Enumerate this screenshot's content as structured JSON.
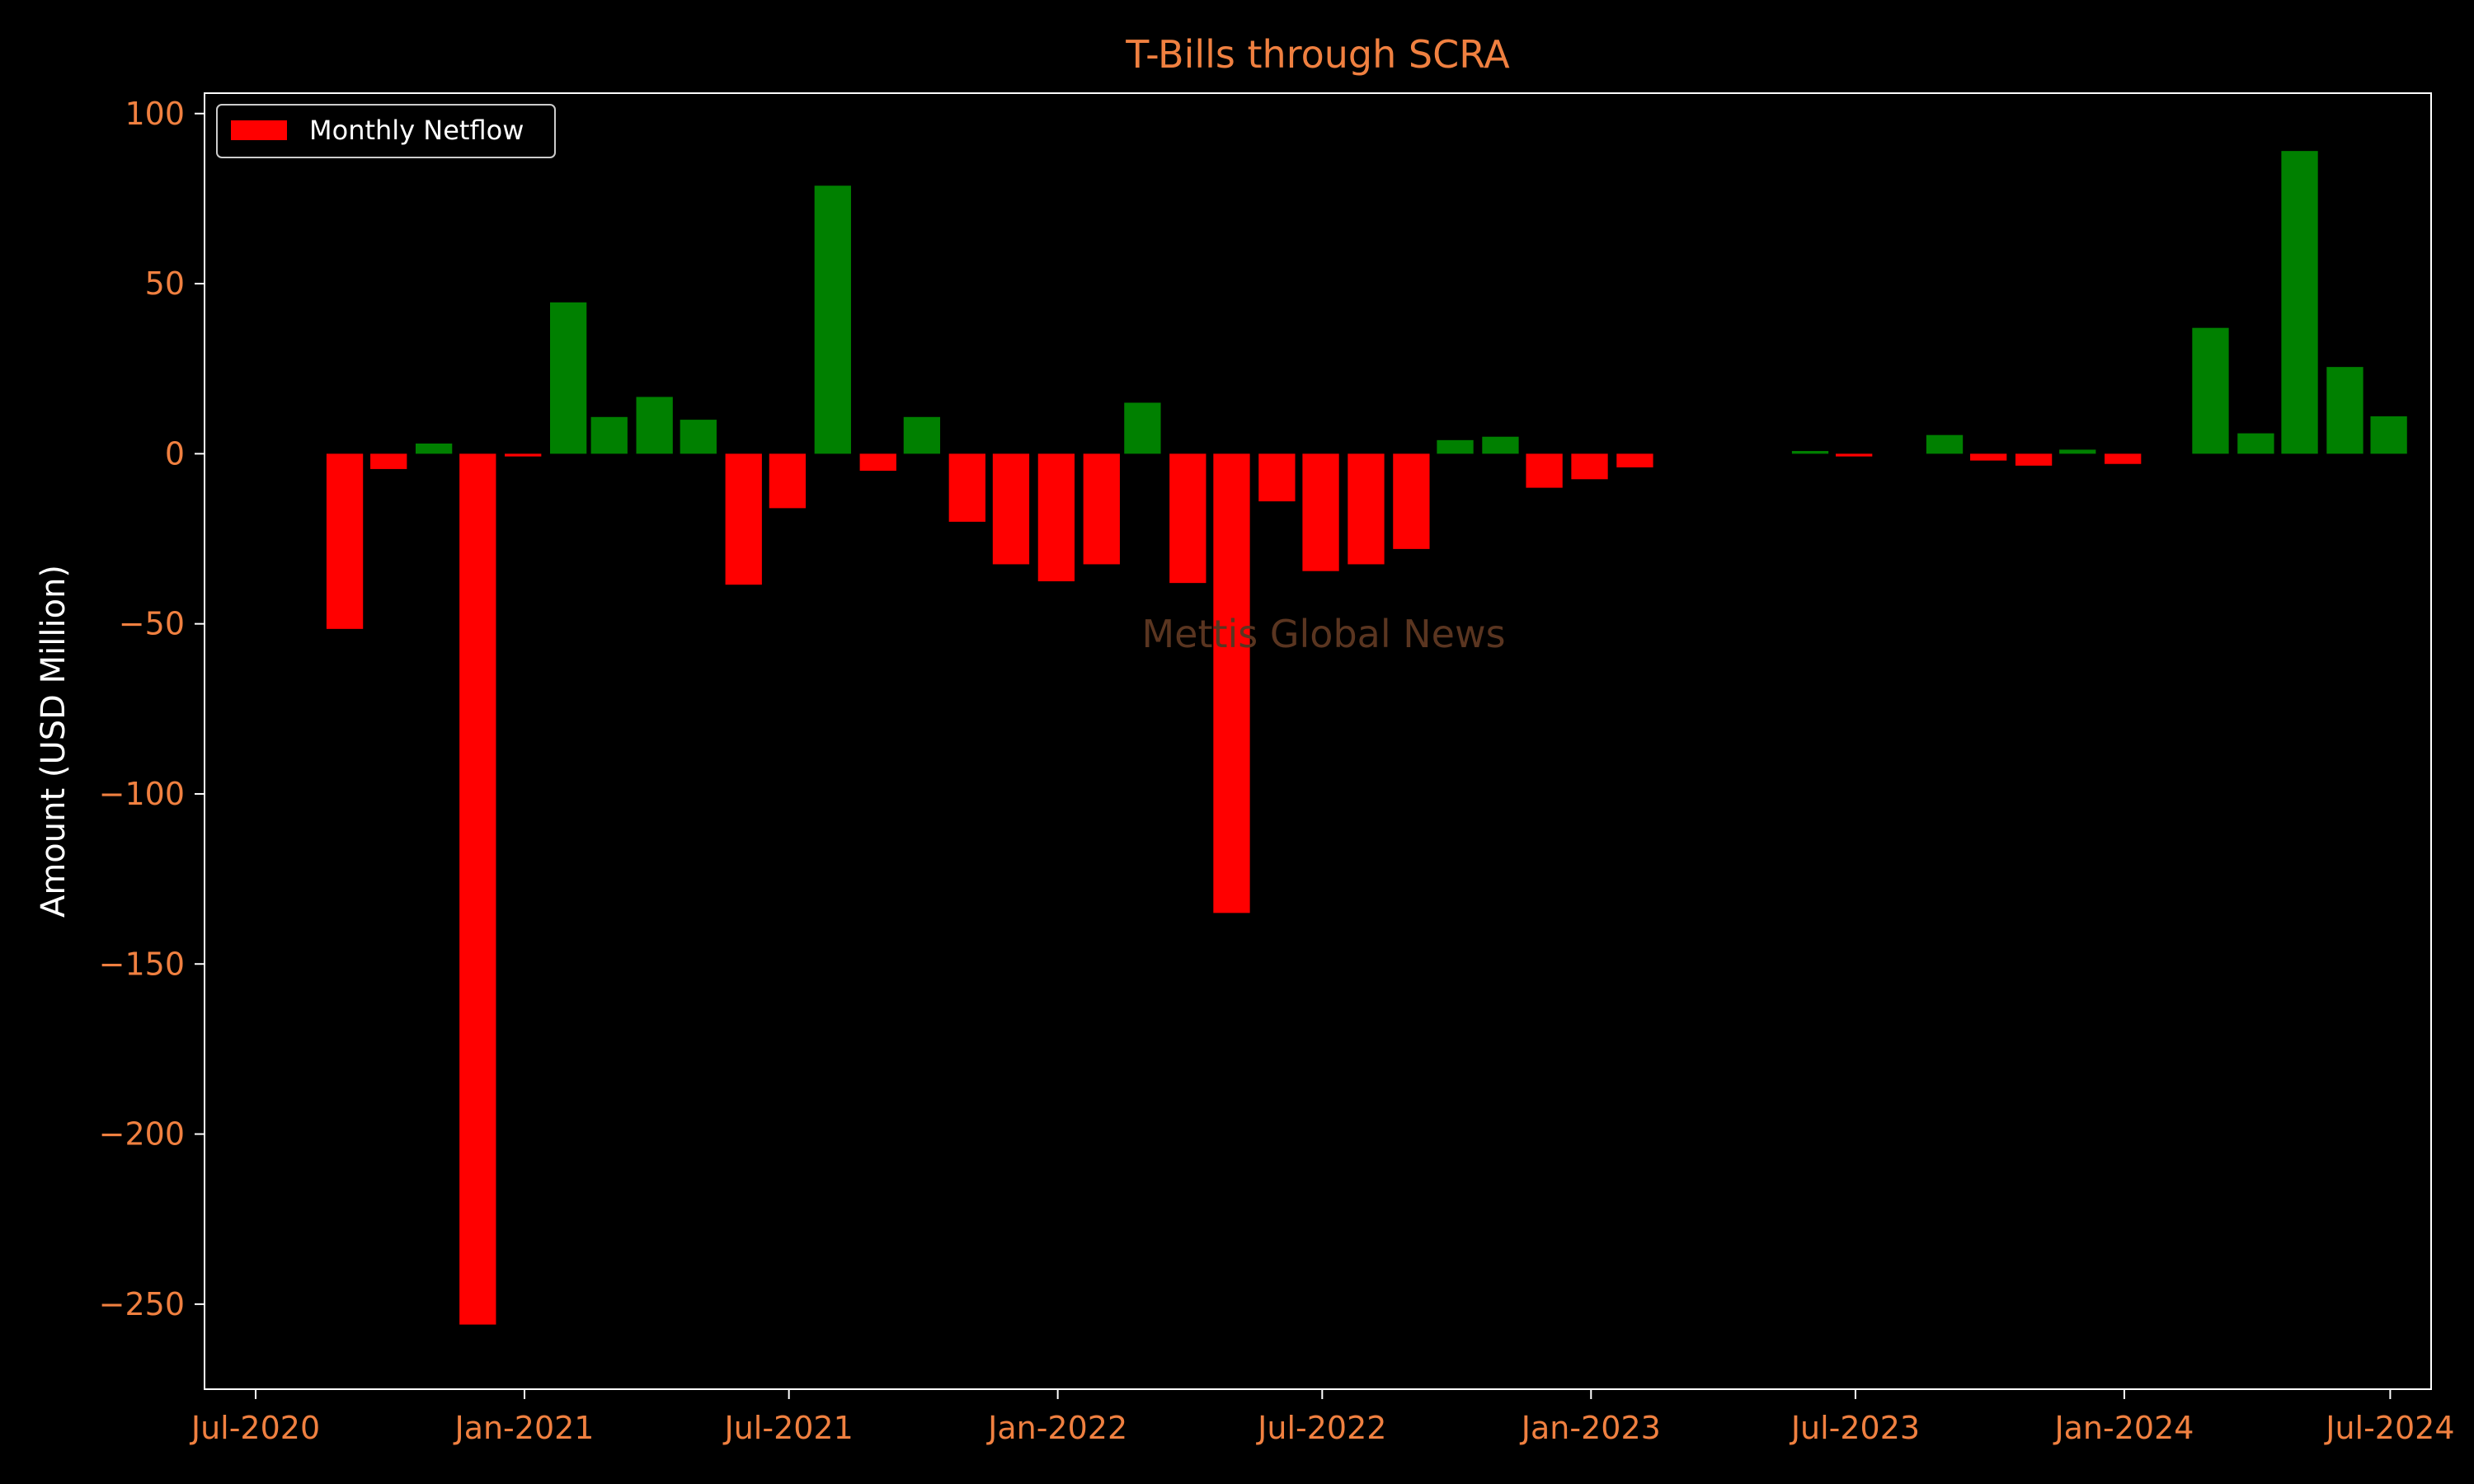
{
  "chart_data": {
    "type": "bar",
    "title": "T-Bills through SCRA",
    "ylabel": "Amount (USD Million)",
    "xlabel": "",
    "watermark": "Mettis Global News",
    "legend": {
      "label": "Monthly Netflow",
      "placement": "top-left"
    },
    "ylim": [
      -275,
      106
    ],
    "yticks": [
      100,
      50,
      0,
      -50,
      -100,
      -150,
      -200,
      -250
    ],
    "ytick_labels": [
      "100",
      "50",
      "0",
      "−50",
      "−100",
      "−150",
      "−200",
      "−250"
    ],
    "xlim": [
      "2020-05-27",
      "2024-07-29"
    ],
    "xticks": [
      {
        "date": "2020-07-01",
        "label": "Jul-2020"
      },
      {
        "date": "2021-01-01",
        "label": "Jan-2021"
      },
      {
        "date": "2021-07-01",
        "label": "Jul-2021"
      },
      {
        "date": "2022-01-01",
        "label": "Jan-2022"
      },
      {
        "date": "2022-07-01",
        "label": "Jul-2022"
      },
      {
        "date": "2023-01-01",
        "label": "Jan-2023"
      },
      {
        "date": "2023-07-01",
        "label": "Jul-2023"
      },
      {
        "date": "2024-01-01",
        "label": "Jan-2024"
      },
      {
        "date": "2024-07-01",
        "label": "Jul-2024"
      }
    ],
    "colors": {
      "positive": "#008000",
      "negative": "#ff0000",
      "text": "#ffffff",
      "accent": "#f08040",
      "watermark": "#5a3520"
    },
    "points": [
      {
        "x": "2020-08-31",
        "y": -51.5
      },
      {
        "x": "2020-09-30",
        "y": -4.5
      },
      {
        "x": "2020-10-31",
        "y": 3.0
      },
      {
        "x": "2020-11-30",
        "y": -256.0
      },
      {
        "x": "2020-12-31",
        "y": -0.8
      },
      {
        "x": "2021-01-31",
        "y": 44.5
      },
      {
        "x": "2021-02-28",
        "y": 10.8
      },
      {
        "x": "2021-03-31",
        "y": 16.7
      },
      {
        "x": "2021-04-30",
        "y": 10.0
      },
      {
        "x": "2021-05-31",
        "y": -38.5
      },
      {
        "x": "2021-06-30",
        "y": -16.0
      },
      {
        "x": "2021-07-31",
        "y": 78.8
      },
      {
        "x": "2021-08-31",
        "y": -5.0
      },
      {
        "x": "2021-09-30",
        "y": 10.8
      },
      {
        "x": "2021-10-31",
        "y": -20.0
      },
      {
        "x": "2021-11-30",
        "y": -32.5
      },
      {
        "x": "2021-12-31",
        "y": -37.5
      },
      {
        "x": "2022-01-31",
        "y": -32.5
      },
      {
        "x": "2022-02-28",
        "y": 15.0
      },
      {
        "x": "2022-03-31",
        "y": -38.0
      },
      {
        "x": "2022-04-30",
        "y": -135.0
      },
      {
        "x": "2022-05-31",
        "y": -14.0
      },
      {
        "x": "2022-06-30",
        "y": -34.5
      },
      {
        "x": "2022-07-31",
        "y": -32.5
      },
      {
        "x": "2022-08-31",
        "y": -28.0
      },
      {
        "x": "2022-09-30",
        "y": 4.0
      },
      {
        "x": "2022-10-31",
        "y": 5.0
      },
      {
        "x": "2022-11-30",
        "y": -10.0
      },
      {
        "x": "2022-12-31",
        "y": -7.5
      },
      {
        "x": "2023-01-31",
        "y": -4.0
      },
      {
        "x": "2023-05-31",
        "y": 0.8
      },
      {
        "x": "2023-06-30",
        "y": -0.8
      },
      {
        "x": "2023-08-31",
        "y": 5.5
      },
      {
        "x": "2023-09-30",
        "y": -2.0
      },
      {
        "x": "2023-10-31",
        "y": -3.5
      },
      {
        "x": "2023-11-30",
        "y": 1.2
      },
      {
        "x": "2023-12-31",
        "y": -3.0
      },
      {
        "x": "2024-02-29",
        "y": 37.0
      },
      {
        "x": "2024-03-31",
        "y": 6.0
      },
      {
        "x": "2024-04-30",
        "y": 89.0
      },
      {
        "x": "2024-05-31",
        "y": 25.5
      },
      {
        "x": "2024-06-30",
        "y": 11.0
      }
    ]
  }
}
